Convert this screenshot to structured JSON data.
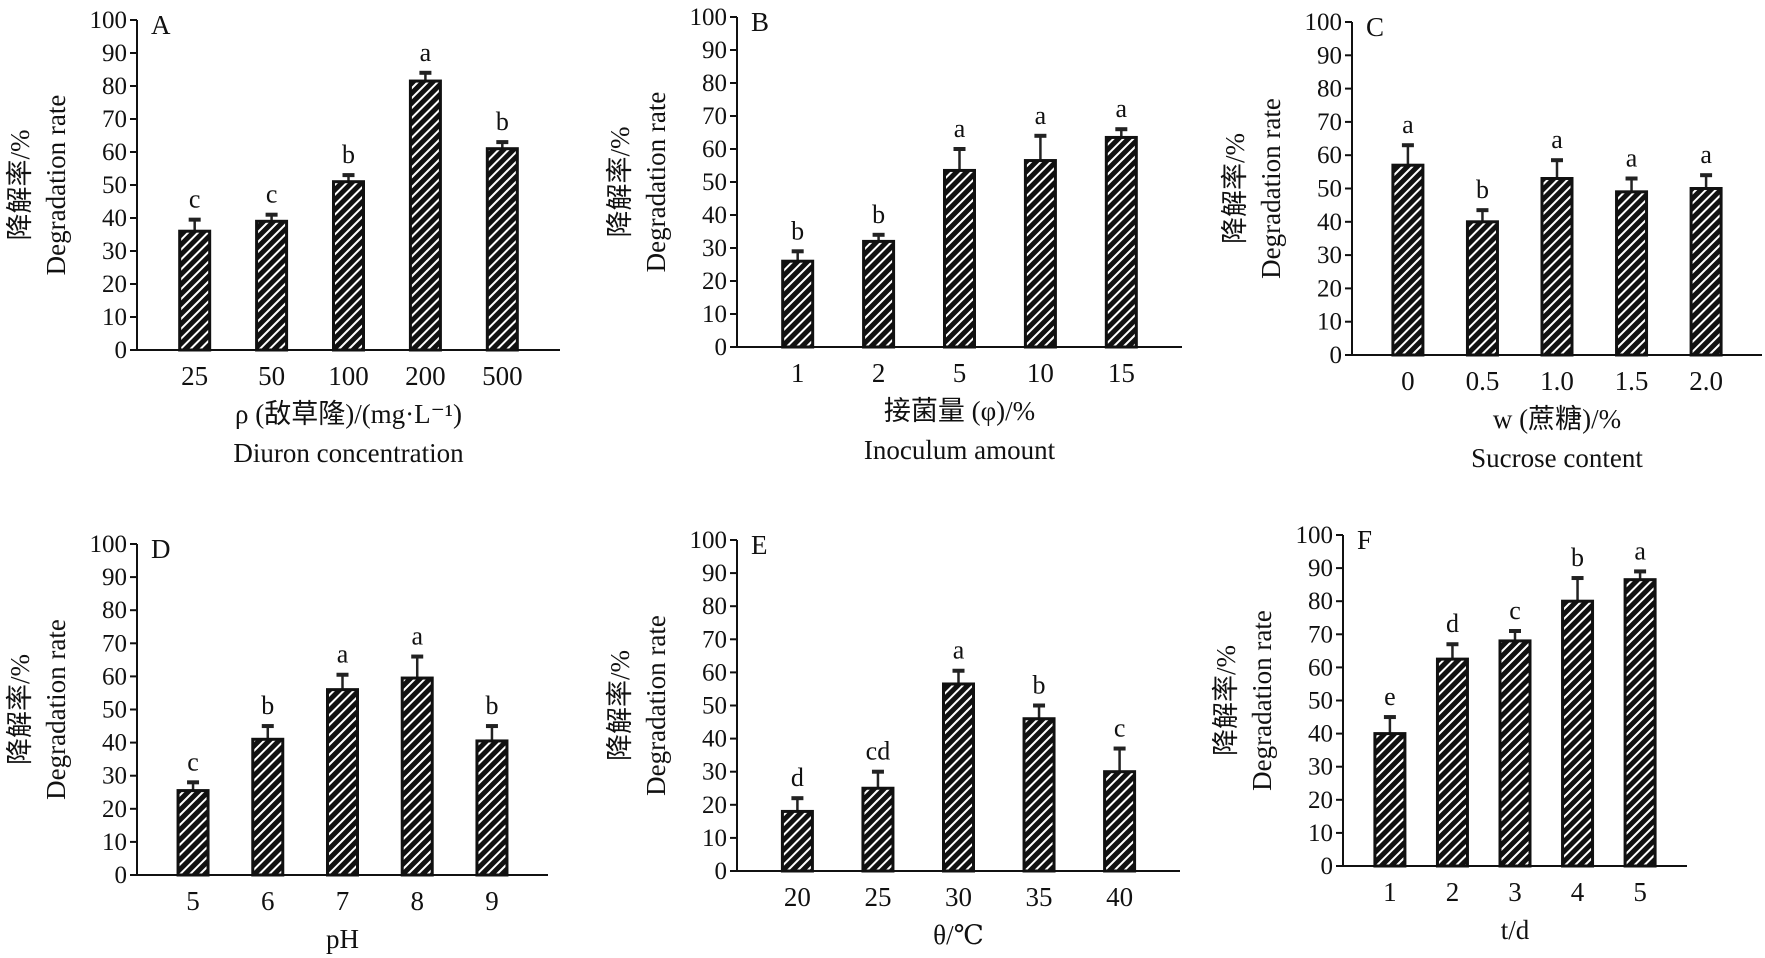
{
  "colors": {
    "bar_fill": "#111111",
    "hatch": "#ffffff",
    "axis": "#111111"
  },
  "chart_data": [
    {
      "type": "bar",
      "panel": "A",
      "categories": [
        "25",
        "50",
        "100",
        "200",
        "500"
      ],
      "values": [
        36,
        39,
        51,
        81.5,
        61
      ],
      "error_upper": [
        39.5,
        41,
        53,
        84,
        63
      ],
      "letters": [
        "c",
        "c",
        "b",
        "a",
        "b"
      ],
      "ylabel_cn": "降解率/%",
      "ylabel_en": "Degradation rate",
      "xlabel": "ρ (敌草隆)/(mg·L⁻¹)",
      "xlabel_en": "Diuron concentration",
      "yticks": [
        "0",
        "10",
        "20",
        "30",
        "40",
        "50",
        "60",
        "70",
        "80",
        "90",
        "100"
      ],
      "ylim": [
        0,
        100
      ],
      "grid": false
    },
    {
      "type": "bar",
      "panel": "B",
      "categories": [
        "1",
        "2",
        "5",
        "10",
        "15"
      ],
      "values": [
        26,
        32,
        53.5,
        56.5,
        63.5
      ],
      "error_upper": [
        29,
        34,
        60,
        64,
        66
      ],
      "letters": [
        "b",
        "b",
        "a",
        "a",
        "a"
      ],
      "ylabel_cn": "降解率/%",
      "ylabel_en": "Degradation rate",
      "xlabel": "接菌量 (φ)/%",
      "xlabel_en": "Inoculum amount",
      "yticks": [
        "0",
        "10",
        "20",
        "30",
        "40",
        "50",
        "60",
        "70",
        "80",
        "90",
        "100"
      ],
      "ylim": [
        0,
        100
      ],
      "grid": false
    },
    {
      "type": "bar",
      "panel": "C",
      "categories": [
        "0",
        "0.5",
        "1.0",
        "1.5",
        "2.0"
      ],
      "values": [
        57,
        40,
        53,
        49,
        50
      ],
      "error_upper": [
        63,
        43.5,
        58.5,
        53,
        54
      ],
      "letters": [
        "a",
        "b",
        "a",
        "a",
        "a"
      ],
      "ylabel_cn": "降解率/%",
      "ylabel_en": "Degradation rate",
      "xlabel": "w (蔗糖)/%",
      "xlabel_en": "Sucrose content",
      "yticks": [
        "0",
        "10",
        "20",
        "30",
        "40",
        "50",
        "60",
        "70",
        "80",
        "90",
        "100"
      ],
      "ylim": [
        0,
        100
      ],
      "grid": false
    },
    {
      "type": "bar",
      "panel": "D",
      "categories": [
        "5",
        "6",
        "7",
        "8",
        "9"
      ],
      "values": [
        25.5,
        41,
        56,
        59.5,
        40.5
      ],
      "error_upper": [
        28,
        45,
        60.5,
        66,
        45
      ],
      "letters": [
        "c",
        "b",
        "a",
        "a",
        "b"
      ],
      "ylabel_cn": "降解率/%",
      "ylabel_en": "Degradation rate",
      "xlabel": "pH",
      "xlabel_en": "",
      "yticks": [
        "0",
        "10",
        "20",
        "30",
        "40",
        "50",
        "60",
        "70",
        "80",
        "90",
        "100"
      ],
      "ylim": [
        0,
        100
      ],
      "grid": false
    },
    {
      "type": "bar",
      "panel": "E",
      "categories": [
        "20",
        "25",
        "30",
        "35",
        "40"
      ],
      "values": [
        18,
        25,
        56.5,
        46,
        30
      ],
      "error_upper": [
        22,
        30,
        60.5,
        50,
        37
      ],
      "letters": [
        "d",
        "cd",
        "a",
        "b",
        "c"
      ],
      "ylabel_cn": "降解率/%",
      "ylabel_en": "Degradation rate",
      "xlabel": "θ/℃",
      "xlabel_en": "",
      "yticks": [
        "0",
        "10",
        "20",
        "30",
        "40",
        "50",
        "60",
        "70",
        "80",
        "90",
        "100"
      ],
      "ylim": [
        0,
        100
      ],
      "grid": false
    },
    {
      "type": "bar",
      "panel": "F",
      "categories": [
        "1",
        "2",
        "3",
        "4",
        "5"
      ],
      "values": [
        40,
        62.5,
        68,
        80,
        86.5
      ],
      "error_upper": [
        45,
        67,
        71,
        87,
        89
      ],
      "letters": [
        "e",
        "d",
        "c",
        "b",
        "a"
      ],
      "ylabel_cn": "降解率/%",
      "ylabel_en": "Degradation rate",
      "xlabel": "t/d",
      "xlabel_en": "",
      "yticks": [
        "0",
        "10",
        "20",
        "30",
        "40",
        "50",
        "60",
        "70",
        "80",
        "90",
        "100"
      ],
      "ylim": [
        0,
        100
      ],
      "grid": false
    }
  ]
}
